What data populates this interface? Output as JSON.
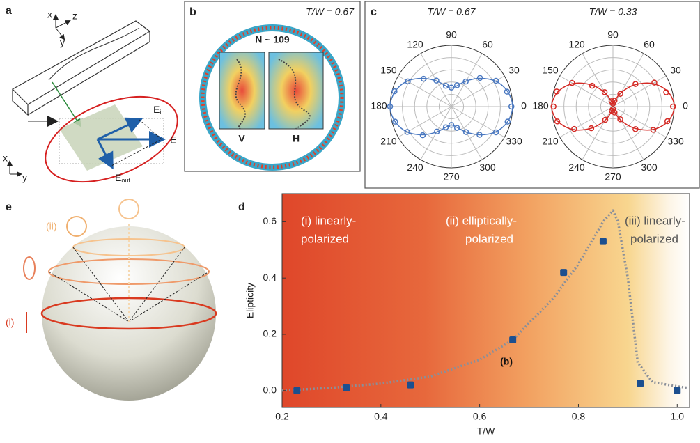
{
  "panels": {
    "a": {
      "letter": "a",
      "labels": [
        "x",
        "z",
        "y",
        "E",
        "E",
        "E",
        "x",
        "y"
      ],
      "subscripts": [
        "in",
        "out"
      ]
    },
    "b": {
      "letter": "b",
      "title": "T/W = 0.67",
      "count": "N ~ 109",
      "insets": [
        "V",
        "H"
      ]
    },
    "c": {
      "letter": "c"
    },
    "d": {
      "letter": "d"
    },
    "e": {
      "letter": "e",
      "labels": [
        "(ii)",
        "(i)"
      ]
    }
  },
  "chart_data": [
    {
      "type": "polar",
      "title": "T/W = 0.67",
      "theta": [
        0,
        15,
        30,
        45,
        60,
        75,
        90,
        105,
        120,
        135,
        150,
        165,
        180,
        195,
        210,
        225,
        240,
        255,
        270,
        285,
        300,
        315,
        330,
        345
      ],
      "thetaticks": [
        0,
        30,
        60,
        90,
        120,
        150,
        180,
        210,
        240,
        270,
        300,
        330
      ],
      "rlim": [
        0,
        1
      ],
      "rticks": [
        0.2,
        0.4,
        0.6,
        0.8,
        1
      ],
      "series": [
        {
          "color": "#4a78c0",
          "style": "markers",
          "values": [
            0.98,
            0.94,
            0.84,
            0.66,
            0.47,
            0.36,
            0.31,
            0.35,
            0.49,
            0.64,
            0.82,
            0.96,
            1.0,
            0.95,
            0.83,
            0.66,
            0.47,
            0.35,
            0.3,
            0.36,
            0.48,
            0.65,
            0.84,
            0.95
          ]
        },
        {
          "color": "#4a78c0",
          "style": "line",
          "values": [
            1,
            0.95,
            0.83,
            0.65,
            0.48,
            0.35,
            0.3,
            0.35,
            0.48,
            0.65,
            0.83,
            0.95,
            1,
            0.95,
            0.83,
            0.65,
            0.48,
            0.35,
            0.3,
            0.35,
            0.48,
            0.65,
            0.83,
            0.95
          ]
        }
      ]
    },
    {
      "type": "polar",
      "title": "T/W = 0.33",
      "theta": [
        0,
        15,
        30,
        45,
        60,
        75,
        90,
        105,
        120,
        135,
        150,
        165,
        180,
        195,
        210,
        225,
        240,
        255,
        270,
        285,
        300,
        315,
        330,
        345
      ],
      "thetaticks": [
        0,
        30,
        60,
        90,
        120,
        150,
        180,
        210,
        240,
        270,
        300,
        330
      ],
      "rlim": [
        0,
        1
      ],
      "rticks": [
        0.2,
        0.4,
        0.6,
        0.8,
        1
      ],
      "series": [
        {
          "color": "#d42a25",
          "style": "markers",
          "values": [
            0.98,
            0.9,
            0.78,
            0.52,
            0.24,
            0.1,
            0.05,
            0.09,
            0.27,
            0.48,
            0.77,
            0.95,
            0.97,
            0.94,
            0.73,
            0.5,
            0.25,
            0.07,
            0.04,
            0.1,
            0.24,
            0.52,
            0.76,
            0.92
          ]
        },
        {
          "color": "#d42a25",
          "style": "line",
          "values": [
            1,
            0.93,
            0.75,
            0.5,
            0.26,
            0.08,
            0.03,
            0.08,
            0.26,
            0.5,
            0.75,
            0.93,
            1,
            0.93,
            0.75,
            0.5,
            0.26,
            0.08,
            0.03,
            0.08,
            0.26,
            0.5,
            0.75,
            0.93
          ]
        }
      ]
    },
    {
      "type": "scatter",
      "xlabel": "T/W",
      "ylabel": "Elipticity",
      "xlim": [
        0.2,
        1.025
      ],
      "ylim": [
        -0.06,
        0.7
      ],
      "xticks": [
        0.2,
        0.4,
        0.6,
        0.8,
        {
          "value": 1,
          "label": "1.0"
        }
      ],
      "yticks": [
        {
          "value": 0,
          "label": "0.0"
        },
        0.2,
        0.4,
        0.6
      ],
      "annotations": [
        "(i) linearly-",
        "polarized",
        "(ii) elliptically-",
        "polarized",
        "(iii) linearly-",
        "polarized",
        "(b)"
      ],
      "series": [
        {
          "color": "#1c4f8f",
          "style": "markers",
          "x": [
            0.23,
            0.33,
            0.46,
            0.667,
            0.77,
            0.85,
            0.925,
            1.0
          ],
          "values": [
            0.0,
            0.01,
            0.02,
            0.18,
            0.42,
            0.53,
            0.025,
            0.0
          ]
        },
        {
          "color": "#8a8f99",
          "style": "dotted-line",
          "x": [
            0.2,
            0.3,
            0.4,
            0.5,
            0.6,
            0.667,
            0.75,
            0.8,
            0.85,
            0.87,
            0.88,
            0.9,
            0.92,
            0.95,
            1.0,
            1.02
          ],
          "values": [
            0.0,
            0.01,
            0.025,
            0.05,
            0.11,
            0.18,
            0.33,
            0.45,
            0.6,
            0.64,
            0.6,
            0.4,
            0.1,
            0.03,
            0.015,
            0.01
          ]
        }
      ]
    }
  ]
}
